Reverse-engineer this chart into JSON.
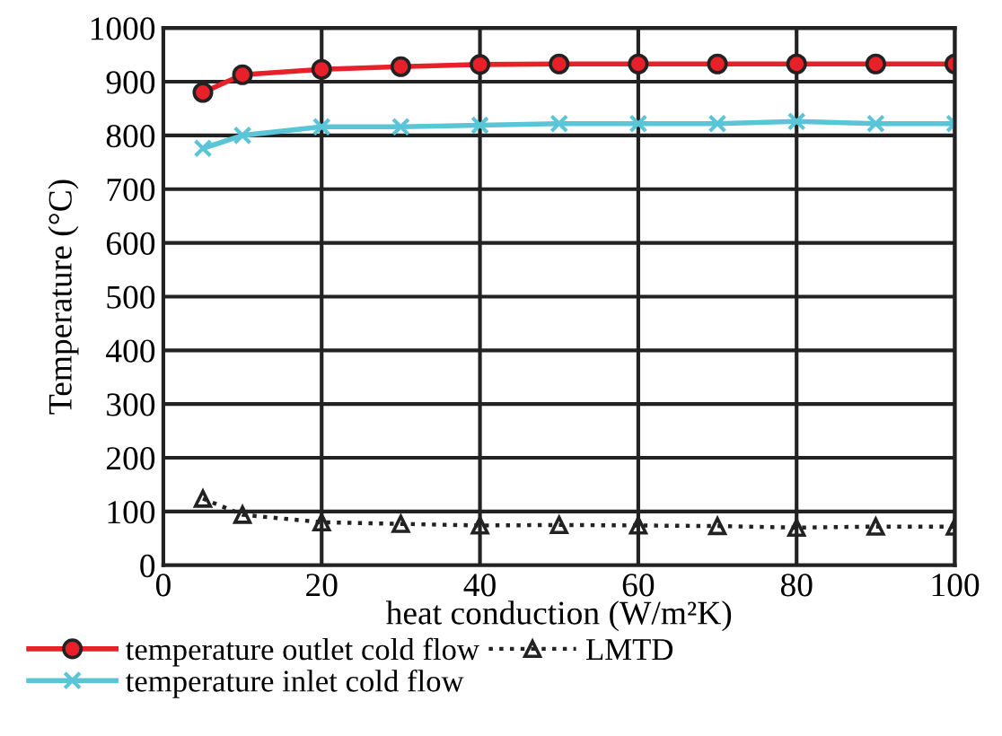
{
  "chart_data": {
    "type": "line",
    "xlabel": "heat conduction (W/m²K)",
    "ylabel": "Temperature (°C)",
    "x": [
      5,
      10,
      20,
      30,
      40,
      50,
      60,
      70,
      80,
      90,
      100
    ],
    "series": [
      {
        "name": "temperature outlet cold flow",
        "color": "#e8202a",
        "marker": "circle",
        "line_style": "solid",
        "values": [
          880,
          913,
          923,
          928,
          932,
          933,
          933,
          933,
          933,
          933,
          933
        ]
      },
      {
        "name": "temperature inlet cold flow",
        "color": "#5bc5d8",
        "marker": "cross",
        "line_style": "solid",
        "values": [
          776,
          800,
          816,
          816,
          819,
          822,
          822,
          822,
          826,
          822,
          822
        ]
      },
      {
        "name": "LMTD",
        "color": "#222222",
        "marker": "triangle",
        "line_style": "dotted",
        "values": [
          124,
          94,
          80,
          77,
          74,
          75,
          74,
          73,
          70,
          72,
          72
        ]
      }
    ],
    "xlim": [
      0,
      100
    ],
    "xticks": [
      0,
      20,
      40,
      60,
      80,
      100
    ],
    "ylim": [
      0,
      1000
    ],
    "yticks": [
      0,
      100,
      200,
      300,
      400,
      500,
      600,
      700,
      800,
      900,
      1000
    ],
    "grid": true,
    "legend": "bottom"
  }
}
